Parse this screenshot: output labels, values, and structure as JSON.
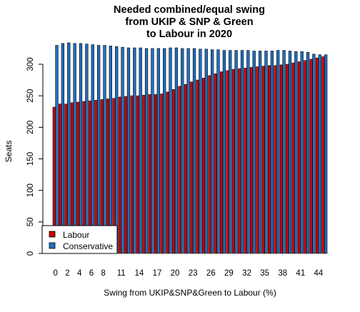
{
  "chart_data": {
    "type": "bar",
    "title_lines": [
      "Needed combined/equal swing",
      "from UKIP & SNP & Green",
      "to Labour in 2020"
    ],
    "xlabel": "Swing from UKIP&SNP&Green to Labour (%)",
    "ylabel": "Seats",
    "ylim": [
      0,
      330
    ],
    "yticks": [
      0,
      50,
      100,
      150,
      200,
      250,
      300
    ],
    "x_tick_labels": [
      "0",
      "2",
      "4",
      "6",
      "8",
      "11",
      "14",
      "17",
      "20",
      "23",
      "26",
      "29",
      "32",
      "35",
      "38",
      "41",
      "44"
    ],
    "x": [
      0,
      1,
      2,
      3,
      4,
      5,
      6,
      7,
      8,
      9,
      10,
      11,
      12,
      13,
      14,
      15,
      16,
      17,
      18,
      19,
      20,
      21,
      22,
      23,
      24,
      25,
      26,
      27,
      28,
      29,
      30,
      31,
      32,
      33,
      34,
      35,
      36,
      37,
      38,
      39,
      40,
      41,
      42,
      43,
      44,
      45
    ],
    "legend_position": "bottom-left",
    "series": [
      {
        "name": "Labour",
        "color": "#cc0000",
        "values": [
          232,
          237,
          237,
          239,
          240,
          241,
          242,
          243,
          244,
          245,
          246,
          248,
          249,
          250,
          250,
          251,
          252,
          252,
          253,
          256,
          260,
          265,
          268,
          272,
          275,
          278,
          282,
          285,
          288,
          290,
          292,
          293,
          294,
          295,
          296,
          297,
          298,
          298,
          299,
          300,
          302,
          304,
          306,
          308,
          310,
          312
        ]
      },
      {
        "name": "Conservative",
        "color": "#1f6fc0",
        "values": [
          330,
          333,
          334,
          333,
          333,
          332,
          331,
          330,
          330,
          329,
          328,
          327,
          326,
          326,
          326,
          325,
          325,
          325,
          325,
          326,
          326,
          325,
          325,
          325,
          324,
          324,
          323,
          323,
          322,
          322,
          322,
          322,
          322,
          321,
          321,
          321,
          321,
          322,
          322,
          321,
          320,
          320,
          319,
          316,
          315,
          315
        ]
      }
    ]
  }
}
